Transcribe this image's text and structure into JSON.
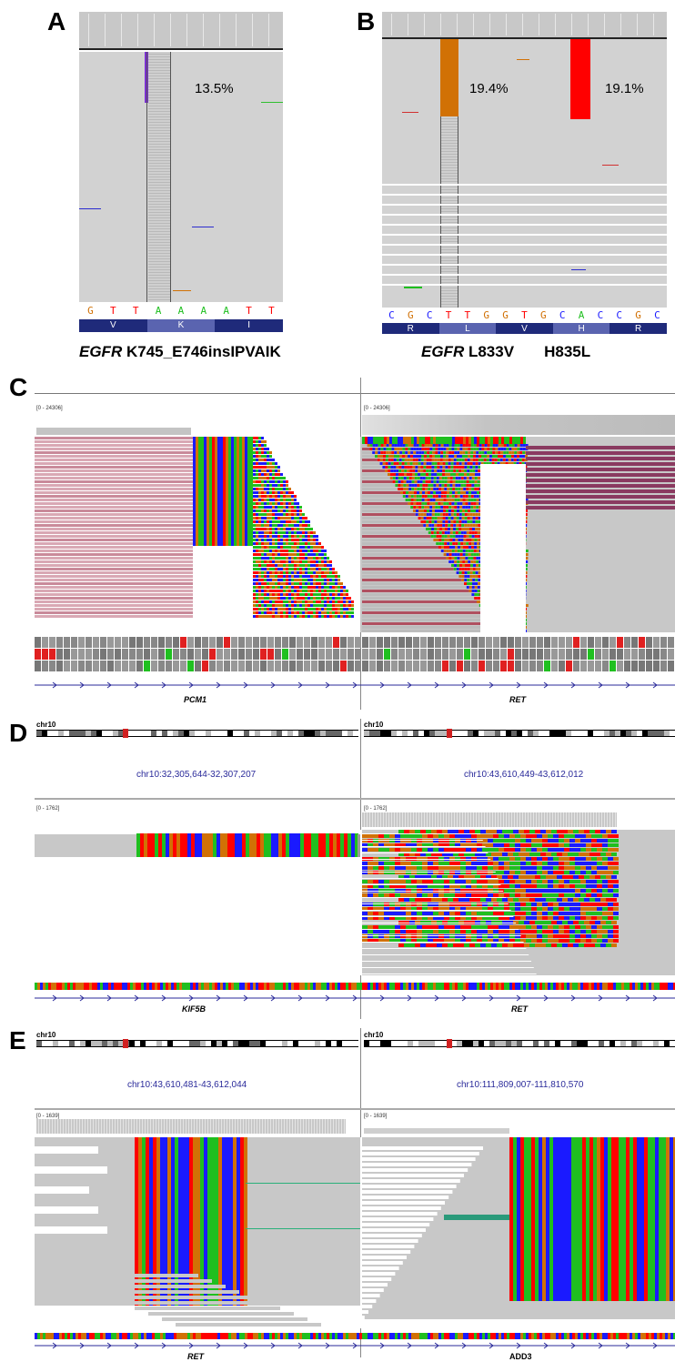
{
  "panels": {
    "a": {
      "letter": "A",
      "percent": "13.5%",
      "reference_bases": [
        "G",
        "T",
        "T",
        "A",
        "A",
        "A",
        "A",
        "T",
        "T"
      ],
      "amino_acids": [
        "V",
        "K",
        "I"
      ],
      "caption_gene": "EGFR",
      "caption_variant": "K745_E746insIPVAIK"
    },
    "b": {
      "letter": "B",
      "percent_left": "19.4%",
      "percent_right": "19.1%",
      "reference_bases": [
        "C",
        "G",
        "C",
        "T",
        "T",
        "G",
        "G",
        "T",
        "G",
        "C",
        "A",
        "C",
        "C",
        "G",
        "C"
      ],
      "amino_acids": [
        "R",
        "L",
        "V",
        "H",
        "R"
      ],
      "caption_gene": "EGFR",
      "caption_variant1": "L833V",
      "caption_variant2": "H835L"
    },
    "c": {
      "letter": "C",
      "scale_left": "[0 - 24306]",
      "scale_right": "[0 - 24306]",
      "gene_left": "PCM1",
      "gene_right": "RET"
    },
    "d": {
      "letter": "D",
      "chr_left": "chr10",
      "chr_right": "chr10",
      "locus_left": "chr10:32,305,644-32,307,207",
      "locus_right": "chr10:43,610,449-43,612,012",
      "scale_left": "[0 - 1762]",
      "scale_right": "[0 - 1762]",
      "gene_left": "KIF5B",
      "gene_right": "RET"
    },
    "e": {
      "letter": "E",
      "chr_left": "chr10",
      "chr_right": "chr10",
      "locus_left": "chr10:43,610,481-43,612,044",
      "locus_right": "chr10:111,809,007-111,810,570",
      "scale_left": "[0 - 1639]",
      "scale_right": "[0 - 1639]",
      "gene_left": "RET",
      "gene_right": "ADD3"
    }
  },
  "colors": {
    "A": "#1fbf1f",
    "C": "#1a1aff",
    "G": "#d17105",
    "T": "#ff0000",
    "read_gray": "#bdbdbd",
    "aa_track": "#1f2a7a"
  }
}
